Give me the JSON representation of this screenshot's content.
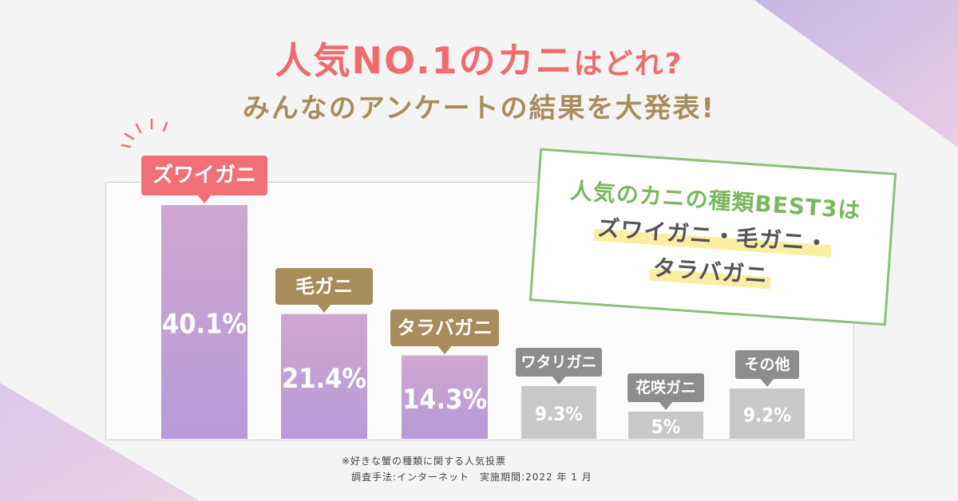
{
  "title": {
    "line1_big": "人気NO.1のカニ",
    "line1_small": "はどれ?",
    "line2": "みんなのアンケートの結果を大発表!"
  },
  "callout": {
    "heading": "人気のカニの種類BEST3は",
    "line1": "ズワイガニ・毛ガニ・",
    "line2": "タラバガニ"
  },
  "notes": {
    "source": "※好きな蟹の種類に関する人気投票",
    "method": "調査手法:インターネット　実施期間:2022 年 1 月"
  },
  "colors": {
    "accent_red": "#f07075",
    "accent_gold": "#a98c5b",
    "gray": "#8d8d8d",
    "green": "#8cc07a"
  },
  "chart_data": {
    "type": "bar",
    "title": "人気NO.1のカニはどれ?",
    "categories": [
      "ズワイガニ",
      "毛ガニ",
      "タラバガニ",
      "ワタリガニ",
      "花咲ガニ",
      "その他"
    ],
    "values": [
      40.1,
      21.4,
      14.3,
      9.3,
      5,
      9.2
    ],
    "value_labels": [
      "40.1%",
      "21.4%",
      "14.3%",
      "9.3%",
      "5%",
      "9.2%"
    ],
    "ylim": [
      0,
      42
    ],
    "xlabel": "",
    "ylabel": "",
    "grid": false,
    "unit": "%"
  }
}
